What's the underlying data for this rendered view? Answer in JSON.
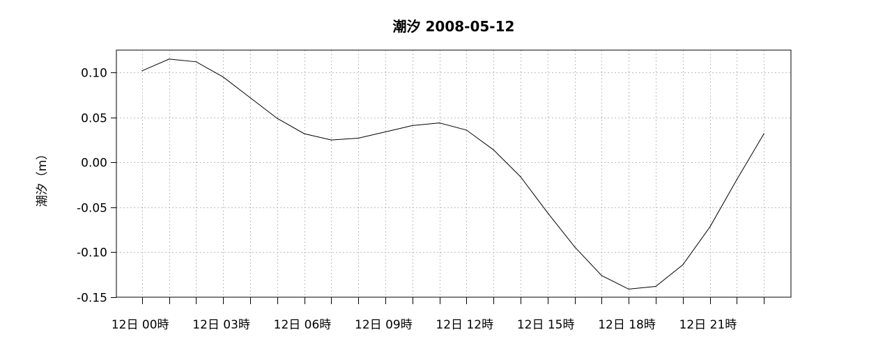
{
  "chart_data": {
    "type": "line",
    "title": "潮汐  2008-05-12",
    "xlabel": "",
    "ylabel": "潮汐（m）",
    "ylim": [
      -0.15,
      0.125
    ],
    "xlim": [
      -0.95,
      24.0
    ],
    "grid": true,
    "y_ticks": [
      0.1,
      0.05,
      0.0,
      -0.05,
      -0.1,
      -0.15
    ],
    "y_tick_labels": [
      "0.10",
      "0.05",
      "0.00",
      "-0.05",
      "-0.10",
      "-0.15"
    ],
    "x_major_ticks": [
      0,
      3,
      6,
      9,
      12,
      15,
      18,
      21
    ],
    "x_tick_labels": [
      "12日 00時",
      "12日 03時",
      "12日 06時",
      "12日 09時",
      "12日 12時",
      "12日 15時",
      "12日 18時",
      "12日 21時"
    ],
    "x": [
      0,
      1,
      2,
      3,
      4,
      5,
      6,
      7,
      8,
      9,
      10,
      11,
      12,
      13,
      14,
      15,
      16,
      17,
      18,
      19,
      20,
      21,
      22,
      23
    ],
    "series": [
      {
        "values": [
          0.102,
          0.115,
          0.112,
          0.095,
          0.072,
          0.049,
          0.032,
          0.025,
          0.027,
          0.034,
          0.041,
          0.044,
          0.036,
          0.014,
          -0.016,
          -0.056,
          -0.094,
          -0.126,
          -0.141,
          -0.138,
          -0.114,
          -0.072,
          -0.019,
          0.032
        ]
      }
    ],
    "colors": {
      "line": "#000000",
      "grid": "#bdbdbd",
      "axis": "#000000"
    }
  }
}
